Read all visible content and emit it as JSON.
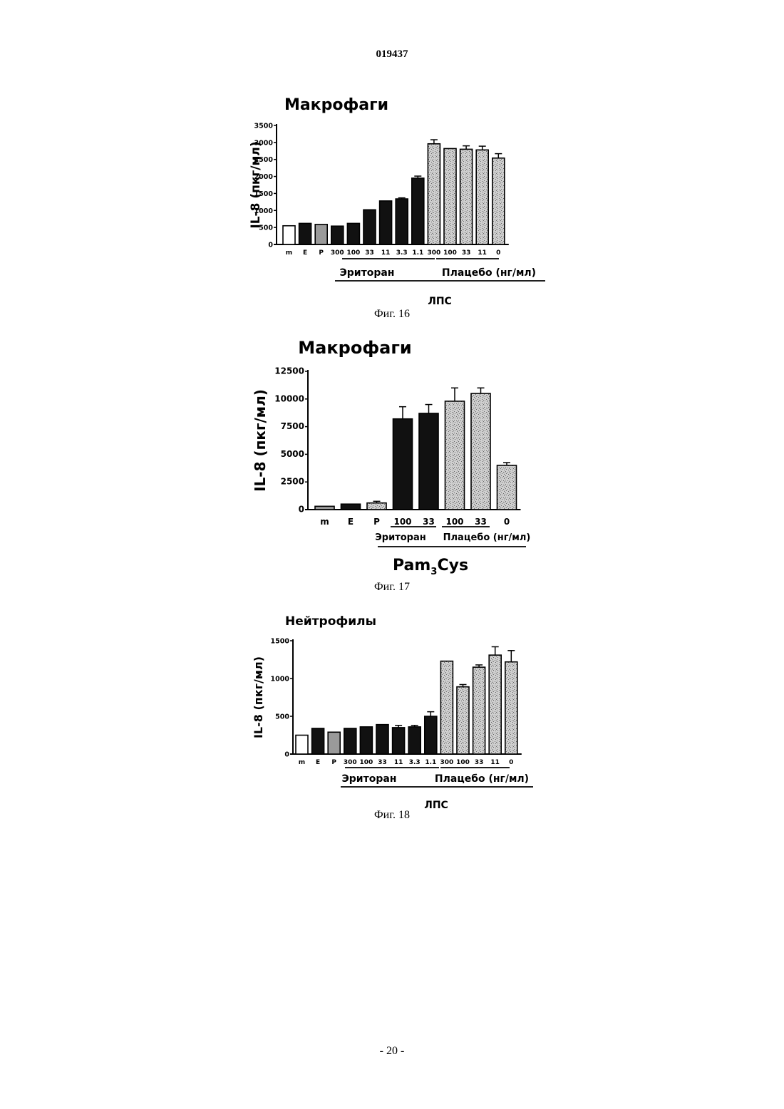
{
  "document_number": "019437",
  "page_number": "- 20 -",
  "figures": [
    {
      "caption": "Фиг. 16"
    },
    {
      "caption": "Фиг. 17"
    },
    {
      "caption": "Фиг. 18"
    }
  ],
  "fills": {
    "open": "#ffffff",
    "solid": "#111111",
    "gray": "#9a9a9a",
    "speckled": "#cfcfcf"
  },
  "chart_data": [
    {
      "type": "bar",
      "title": "Макрофаги",
      "ylabel": "IL-8 (пкг/мл)",
      "ylim": [
        0,
        3500
      ],
      "yticks": [
        "0",
        "500",
        "1000",
        "1500",
        "2000",
        "2500",
        "3000",
        "3500"
      ],
      "categories": [
        "m",
        "E",
        "P",
        "300",
        "100",
        "33",
        "11",
        "3.3",
        "1.1",
        "300",
        "100",
        "33",
        "11",
        "0"
      ],
      "values": [
        550,
        620,
        590,
        540,
        620,
        1020,
        1280,
        1340,
        1950,
        2960,
        2820,
        2800,
        2780,
        2540
      ],
      "errors": [
        0,
        0,
        0,
        0,
        0,
        0,
        0,
        30,
        60,
        120,
        0,
        100,
        110,
        130
      ],
      "fill": [
        "open",
        "solid",
        "gray",
        "solid",
        "solid",
        "solid",
        "solid",
        "solid",
        "solid",
        "speckled",
        "speckled",
        "speckled",
        "speckled",
        "speckled"
      ],
      "group_labels": [
        "Эриторан",
        "Плацебо (нг/мл)"
      ],
      "stimulus": "ЛПС"
    },
    {
      "type": "bar",
      "title": "Макрофаги",
      "ylabel": "IL-8 (пкг/мл)",
      "ylim": [
        0,
        12500
      ],
      "yticks": [
        "0",
        "2500",
        "5000",
        "7500",
        "10000",
        "12500"
      ],
      "categories": [
        "m",
        "E",
        "P",
        "100",
        "33",
        "100",
        "33",
        "0"
      ],
      "values": [
        300,
        500,
        600,
        8200,
        8700,
        9800,
        10500,
        4000
      ],
      "errors": [
        0,
        0,
        150,
        1100,
        800,
        1200,
        500,
        250
      ],
      "fill": [
        "gray",
        "solid",
        "speckled",
        "solid",
        "solid",
        "speckled",
        "speckled",
        "speckled"
      ],
      "group_labels": [
        "Эриторан",
        "Плацебо (нг/мл)"
      ],
      "stimulus": "Pam",
      "stimulus_subscript": "3",
      "stimulus_suffix": "Cys"
    },
    {
      "type": "bar",
      "title": "Нейтрофилы",
      "ylabel": "IL-8 (пкг/мл)",
      "ylim": [
        0,
        1500
      ],
      "yticks": [
        "0",
        "500",
        "1000",
        "1500"
      ],
      "categories": [
        "m",
        "E",
        "P",
        "300",
        "100",
        "33",
        "11",
        "3.3",
        "1.1",
        "300",
        "100",
        "33",
        "11",
        "0"
      ],
      "values": [
        250,
        340,
        290,
        340,
        360,
        390,
        350,
        360,
        500,
        1230,
        890,
        1150,
        1310,
        1220
      ],
      "errors": [
        0,
        0,
        0,
        0,
        0,
        0,
        30,
        20,
        60,
        0,
        30,
        30,
        110,
        150
      ],
      "fill": [
        "open",
        "solid",
        "gray",
        "solid",
        "solid",
        "solid",
        "solid",
        "solid",
        "solid",
        "speckled",
        "speckled",
        "speckled",
        "speckled",
        "speckled"
      ],
      "group_labels": [
        "Эриторан",
        "Плацебо (нг/мл)"
      ],
      "stimulus": "ЛПС"
    }
  ]
}
